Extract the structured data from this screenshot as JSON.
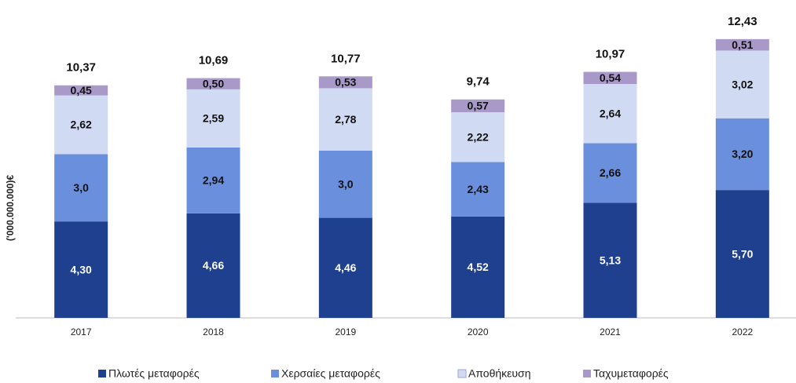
{
  "chart_data": {
    "type": "stacked_bar",
    "y_label": "('000.000.000)€",
    "categories": [
      "2017",
      "2018",
      "2019",
      "2020",
      "2021",
      "2022"
    ],
    "series": [
      {
        "name": "Πλωτές μεταφορές",
        "color": "#1f3f8f",
        "values": [
          4.3,
          4.66,
          4.46,
          4.52,
          5.13,
          5.7
        ],
        "value_labels": [
          "4,30",
          "4,66",
          "4,46",
          "4,52",
          "5,13",
          "5,70"
        ]
      },
      {
        "name": "Χερσαίες μεταφορές",
        "color": "#6a8fdc",
        "values": [
          3.0,
          2.94,
          3.0,
          2.43,
          2.66,
          3.2
        ],
        "value_labels": [
          "3,0",
          "2,94",
          "3,0",
          "2,43",
          "2,66",
          "3,20"
        ]
      },
      {
        "name": "Αποθήκευση",
        "color": "#d0daf3",
        "values": [
          2.62,
          2.59,
          2.78,
          2.22,
          2.64,
          3.02
        ],
        "value_labels": [
          "2,62",
          "2,59",
          "2,78",
          "2,22",
          "2,64",
          "3,02"
        ]
      },
      {
        "name": "Ταχυμεταφορές",
        "color": "#a899c9",
        "values": [
          0.45,
          0.5,
          0.53,
          0.57,
          0.54,
          0.51
        ],
        "value_labels": [
          "0,45",
          "0,50",
          "0,53",
          "0,57",
          "0,54",
          "0,51"
        ]
      }
    ],
    "totals": [
      10.37,
      10.69,
      10.77,
      9.74,
      10.97,
      12.43
    ],
    "total_labels": [
      "10,37",
      "10,69",
      "10,77",
      "9,74",
      "10,97",
      "12,43"
    ],
    "ylim": [
      0,
      14
    ]
  }
}
